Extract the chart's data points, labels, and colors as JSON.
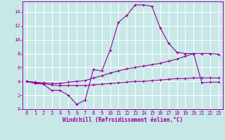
{
  "xlabel": "Windchill (Refroidissement éolien,°C)",
  "background_color": "#c8e8e8",
  "grid_color": "#aacccc",
  "line_color": "#990099",
  "xlim": [
    -0.5,
    23.5
  ],
  "ylim": [
    0,
    15.5
  ],
  "xticks": [
    0,
    1,
    2,
    3,
    4,
    5,
    6,
    7,
    8,
    9,
    10,
    11,
    12,
    13,
    14,
    15,
    16,
    17,
    18,
    19,
    20,
    21,
    22,
    23
  ],
  "yticks": [
    0,
    2,
    4,
    6,
    8,
    10,
    12,
    14
  ],
  "series1_x": [
    0,
    1,
    2,
    3,
    4,
    5,
    6,
    7,
    8,
    9,
    10,
    11,
    12,
    13,
    14,
    15,
    16,
    17,
    18,
    19,
    20,
    21,
    22,
    23
  ],
  "series1_y": [
    4.0,
    3.7,
    3.6,
    2.7,
    2.7,
    2.0,
    0.7,
    1.3,
    5.7,
    5.5,
    8.5,
    12.5,
    13.5,
    15.0,
    15.0,
    14.8,
    11.7,
    9.5,
    8.2,
    8.0,
    8.0,
    3.8,
    3.9,
    3.9
  ],
  "series2_x": [
    0,
    1,
    2,
    3,
    4,
    5,
    6,
    7,
    8,
    9,
    10,
    11,
    12,
    13,
    14,
    15,
    16,
    17,
    18,
    19,
    20,
    21,
    22,
    23
  ],
  "series2_y": [
    4.0,
    3.9,
    3.8,
    3.7,
    3.7,
    3.9,
    4.0,
    4.1,
    4.5,
    4.8,
    5.2,
    5.5,
    5.8,
    6.0,
    6.2,
    6.4,
    6.6,
    6.9,
    7.2,
    7.6,
    8.0,
    8.0,
    8.0,
    7.9
  ],
  "series3_x": [
    0,
    1,
    2,
    3,
    4,
    5,
    6,
    7,
    8,
    9,
    10,
    11,
    12,
    13,
    14,
    15,
    16,
    17,
    18,
    19,
    20,
    21,
    22,
    23
  ],
  "series3_y": [
    4.0,
    3.8,
    3.7,
    3.5,
    3.4,
    3.4,
    3.4,
    3.4,
    3.5,
    3.6,
    3.7,
    3.8,
    3.9,
    4.0,
    4.0,
    4.1,
    4.2,
    4.3,
    4.4,
    4.4,
    4.5,
    4.5,
    4.5,
    4.5
  ],
  "tick_fontsize": 5.0,
  "label_fontsize": 5.5,
  "linewidth": 0.8,
  "markersize": 3.0,
  "markeredgewidth": 0.8
}
